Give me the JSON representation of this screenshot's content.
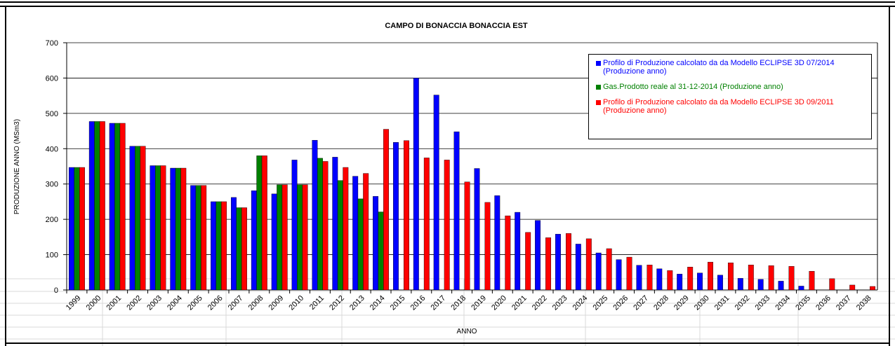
{
  "chart_data": {
    "type": "bar",
    "title": "CAMPO DI BONACCIA  BONACCIA  EST",
    "y_label": "PRODUZIONE ANNO (MSm3)",
    "x_label": "ANNO",
    "categories": [
      "1999",
      "2000",
      "2001",
      "2002",
      "2003",
      "2004",
      "2005",
      "2006",
      "2007",
      "2008",
      "2009",
      "2010",
      "2011",
      "2012",
      "2013",
      "2014",
      "2015",
      "2016",
      "2017",
      "2018",
      "2019",
      "2020",
      "2021",
      "2022",
      "2023",
      "2024",
      "2025",
      "2026",
      "2027",
      "2028",
      "2029",
      "2030",
      "2031",
      "2032",
      "2033",
      "2034",
      "2035",
      "2036",
      "2037",
      "2038"
    ],
    "series": [
      {
        "name": "Profilo di Produzione calcolato da da Modello ECLIPSE  3D 07/2014 (Produzione anno)",
        "color": "#0000ff",
        "values": [
          347,
          477,
          472,
          407,
          352,
          345,
          296,
          250,
          262,
          281,
          272,
          368,
          424,
          376,
          322,
          265,
          418,
          600,
          552,
          448,
          344,
          267,
          220,
          197,
          158,
          130,
          105,
          86,
          70,
          60,
          45,
          48,
          42,
          33,
          30,
          25,
          11,
          null,
          null,
          null
        ]
      },
      {
        "name": "Gas.Prodotto reale al 31-12-2014 (Produzione anno)",
        "color": "#008000",
        "values": [
          347,
          477,
          472,
          407,
          352,
          345,
          296,
          250,
          233,
          380,
          298,
          298,
          373,
          310,
          258,
          221,
          null,
          null,
          null,
          null,
          null,
          null,
          null,
          null,
          null,
          null,
          null,
          null,
          null,
          null,
          null,
          null,
          null,
          null,
          null,
          null,
          null,
          null,
          null,
          null
        ]
      },
      {
        "name": "Profilo di Produzione calcolato da da Modello ECLIPSE  3D 09/2011 (Produzione anno)",
        "color": "#ff0000",
        "values": [
          347,
          477,
          472,
          407,
          352,
          345,
          296,
          250,
          233,
          380,
          298,
          298,
          364,
          347,
          330,
          455,
          423,
          374,
          368,
          306,
          248,
          210,
          163,
          148,
          160,
          145,
          117,
          93,
          71,
          55,
          65,
          79,
          77,
          71,
          69,
          67,
          53,
          32,
          14,
          10
        ]
      }
    ],
    "ylim": [
      0,
      700
    ],
    "yticks": [
      0,
      100,
      200,
      300,
      400,
      500,
      600,
      700
    ],
    "grid": true
  }
}
